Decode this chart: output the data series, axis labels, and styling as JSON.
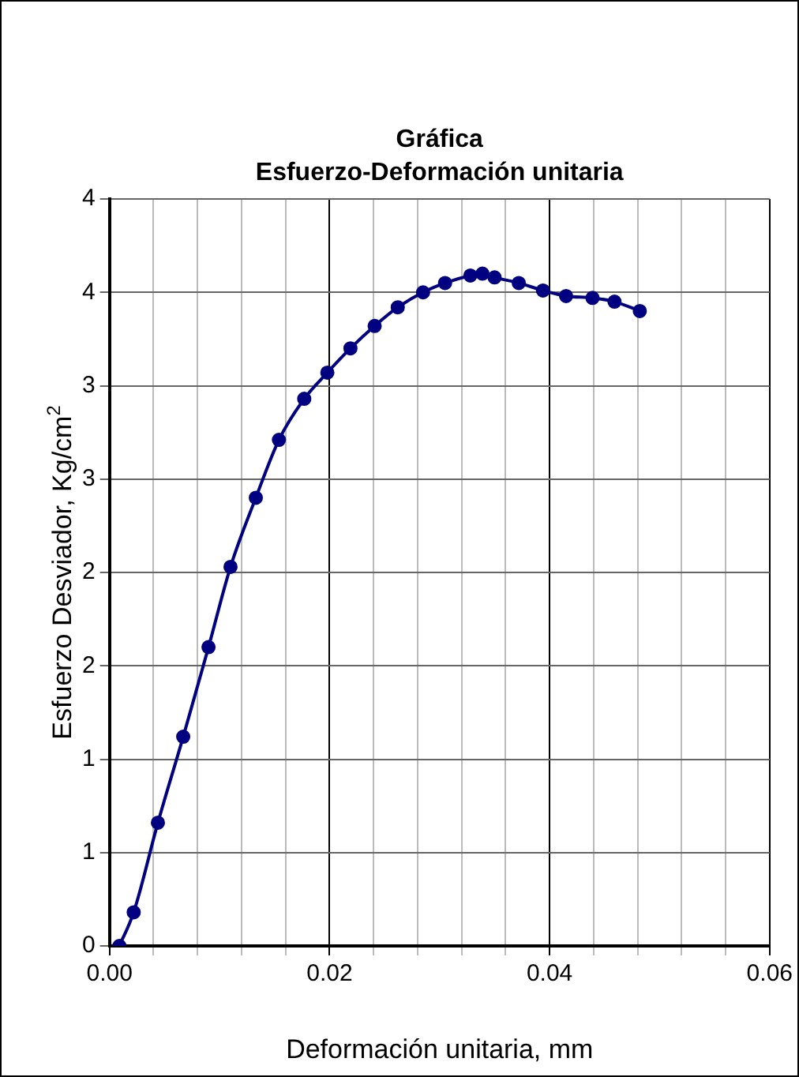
{
  "chart_data": {
    "type": "line",
    "title": "Gráfica",
    "subtitle": "Esfuerzo-Deformación unitaria",
    "xlabel": "Deformación unitaria, mm",
    "ylabel": "Esfuerzo Desviador, Kg/cm$^{2}$",
    "x": [
      0.0009,
      0.0022,
      0.0044,
      0.0067,
      0.009,
      0.011,
      0.0133,
      0.0154,
      0.0177,
      0.0198,
      0.0219,
      0.0241,
      0.0262,
      0.0285,
      0.0305,
      0.0328,
      0.0339,
      0.035,
      0.0372,
      0.0394,
      0.0415,
      0.0439,
      0.0459,
      0.0482
    ],
    "series": [
      {
        "color": "#000080",
        "values": [
          0,
          0.18,
          0.66,
          1.12,
          1.6,
          2.03,
          2.4,
          2.71,
          2.93,
          3.07,
          3.2,
          3.32,
          3.42,
          3.5,
          3.55,
          3.59,
          3.6,
          3.58,
          3.55,
          3.51,
          3.48,
          3.47,
          3.45,
          3.4
        ]
      }
    ],
    "xlim": [
      0,
      0.06
    ],
    "xticks": [
      {
        "value": 0,
        "label": "0.00"
      },
      {
        "value": 0.004,
        "label": null
      },
      {
        "value": 0.008,
        "label": null
      },
      {
        "value": 0.012,
        "label": null
      },
      {
        "value": 0.016,
        "label": null
      },
      {
        "value": 0.02,
        "label": "0.02"
      },
      {
        "value": 0.024,
        "label": null
      },
      {
        "value": 0.028,
        "label": null
      },
      {
        "value": 0.032,
        "label": null
      },
      {
        "value": 0.036,
        "label": null
      },
      {
        "value": 0.04,
        "label": "0.04"
      },
      {
        "value": 0.044,
        "label": null
      },
      {
        "value": 0.048,
        "label": null
      },
      {
        "value": 0.052,
        "label": null
      },
      {
        "value": 0.056,
        "label": null
      },
      {
        "value": 0.06,
        "label": "0.06"
      }
    ],
    "ylim": [
      0,
      4
    ],
    "yticks": [
      {
        "value": 0,
        "label": "0"
      },
      {
        "value": 0.5,
        "label": "1"
      },
      {
        "value": 1,
        "label": "1"
      },
      {
        "value": 1.5,
        "label": "2"
      },
      {
        "value": 2,
        "label": "2"
      },
      {
        "value": 2.5,
        "label": "3"
      },
      {
        "value": 3,
        "label": "3"
      },
      {
        "value": 3.5,
        "label": "4"
      },
      {
        "value": 4,
        "label": "4"
      }
    ],
    "grid": true,
    "marker": "circle",
    "line_style": "solid",
    "legend": false
  }
}
